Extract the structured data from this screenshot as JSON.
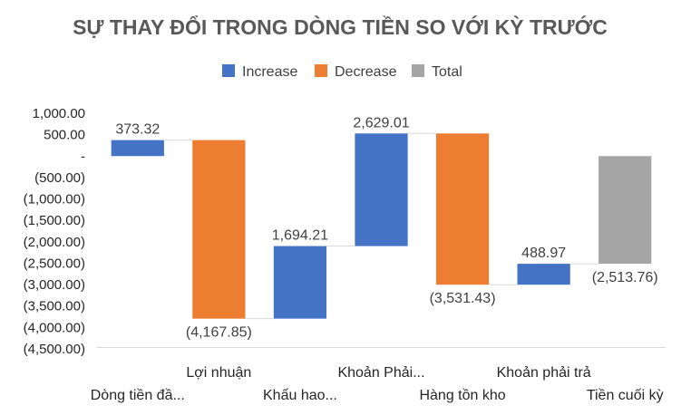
{
  "chart_data": {
    "type": "waterfall",
    "title": "SỰ THAY ĐỔI TRONG DÒNG TIỀN SO VỚI KỲ TRƯỚC",
    "legend": {
      "position": "top",
      "entries": [
        {
          "name": "Increase",
          "color": "#4472C4"
        },
        {
          "name": "Decrease",
          "color": "#ED7D31"
        },
        {
          "name": "Total",
          "color": "#A5A5A5"
        }
      ]
    },
    "categories": [
      "Dòng tiền đầ...",
      "Lợi nhuận",
      "Khấu hao...",
      "Khoản Phải...",
      "Hàng tồn kho",
      "Khoản phải trả",
      "Tiền cuối kỳ"
    ],
    "values": [
      373.32,
      -4167.85,
      1694.21,
      2629.01,
      -3531.43,
      488.97,
      -2513.76
    ],
    "data_labels": [
      "373.32",
      "(4,167.85)",
      "1,694.21",
      "2,629.01",
      "(3,531.43)",
      "488.97",
      "(2,513.76)"
    ],
    "kinds": [
      "increase",
      "decrease",
      "increase",
      "increase",
      "decrease",
      "increase",
      "total"
    ],
    "ylim": [
      -4500,
      1000
    ],
    "y_ticks": [
      1000,
      500,
      0,
      -500,
      -1000,
      -1500,
      -2000,
      -2500,
      -3000,
      -3500,
      -4000,
      -4500
    ],
    "y_tick_labels": [
      "1,000.00",
      "500.00",
      "-",
      "(500.00)",
      "(1,000.00)",
      "(1,500.00)",
      "(2,000.00)",
      "(2,500.00)",
      "(3,000.00)",
      "(3,500.00)",
      "(4,000.00)",
      "(4,500.00)"
    ],
    "grid": false,
    "connector_lines": true
  }
}
